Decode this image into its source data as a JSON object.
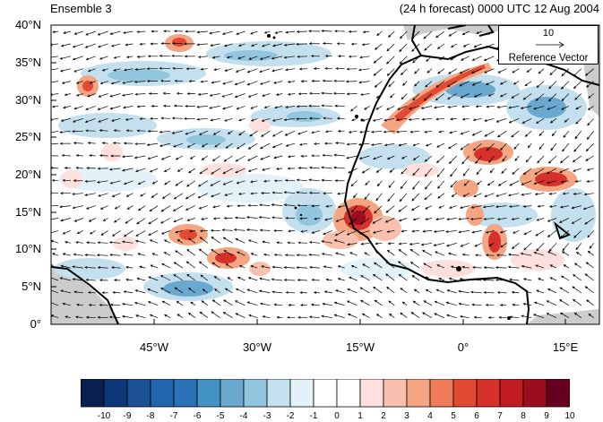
{
  "titles": {
    "left": "Ensemble 3",
    "right": "(24 h forecast) 0000 UTC 12 Aug 2004"
  },
  "map": {
    "lat_range": [
      0,
      40
    ],
    "lon_range": [
      -60,
      20
    ],
    "lat_ticks": [
      "40°N",
      "35°N",
      "30°N",
      "25°N",
      "20°N",
      "15°N",
      "10°N",
      "5°N",
      "0°"
    ],
    "lon_ticks": [
      "45°W",
      "30°W",
      "15°W",
      "0°",
      "15°E"
    ],
    "colors": {
      "land_mask": "#cccccc",
      "coast": "#000000",
      "vectors": "#000000"
    }
  },
  "reference_vector": {
    "magnitude": "10",
    "label": "Reference Vector"
  },
  "colorbar": {
    "labels": [
      "-10",
      "-9",
      "-8",
      "-7",
      "-6",
      "-5",
      "-4",
      "-3",
      "-2",
      "-1",
      "0",
      "1",
      "2",
      "3",
      "4",
      "5",
      "6",
      "7",
      "8",
      "9",
      "10"
    ],
    "colors": [
      "#08204f",
      "#0d3776",
      "#1b5294",
      "#2166ac",
      "#2a72b5",
      "#4393c3",
      "#6aa8cf",
      "#92c5de",
      "#c4e0ee",
      "#e3f2f8",
      "#ffffff",
      "#ffffff",
      "#fde0dd",
      "#f9c0b0",
      "#f4a582",
      "#ee7b5a",
      "#e34a33",
      "#d6312a",
      "#c21c23",
      "#9c0d1f",
      "#67001f"
    ]
  }
}
